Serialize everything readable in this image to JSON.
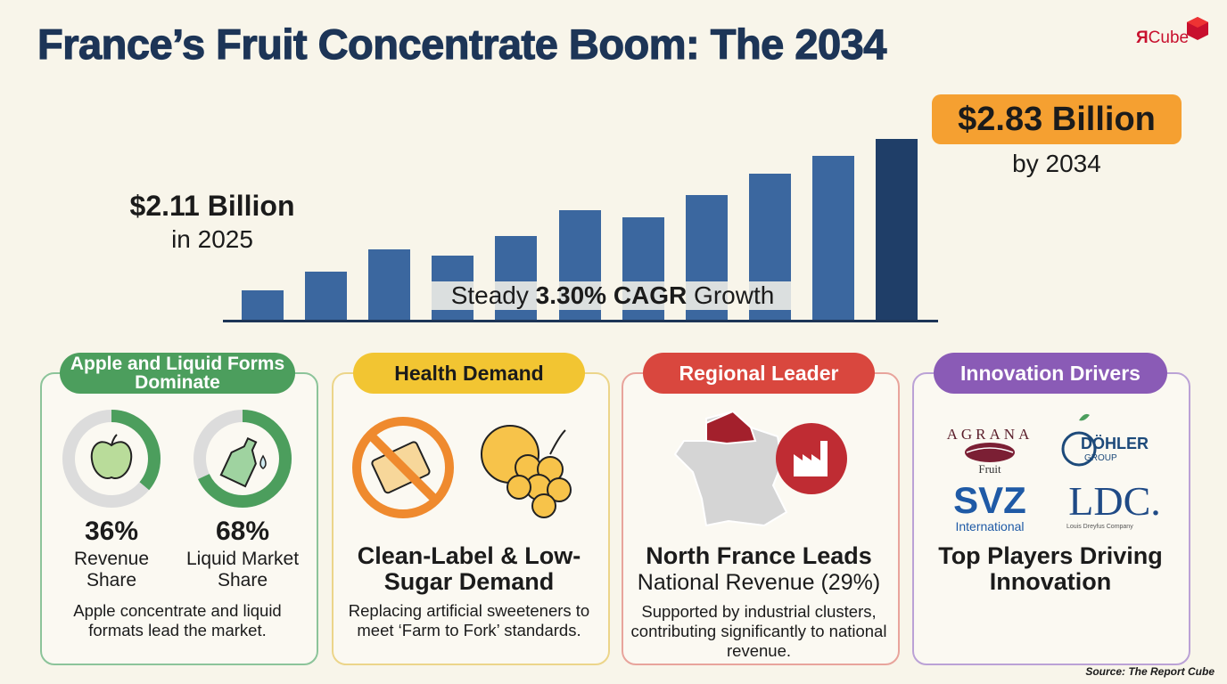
{
  "header": {
    "title": "France’s Fruit Concentrate Boom: The 2034",
    "logo": {
      "mark": "Я",
      "text": "Cube"
    }
  },
  "hero": {
    "start_value": "$2.11 Billion",
    "start_label": "in 2025",
    "end_value": "$2.83 Billion",
    "end_label": "by 2034",
    "cagr": {
      "prefix": "Steady",
      "highlight": "3.30% CAGR",
      "suffix": "Growth"
    }
  },
  "cards": [
    {
      "title": "Apple and Liquid Forms Dominate",
      "stats": [
        {
          "value": 36,
          "label": "36%",
          "caption": "Revenue Share"
        },
        {
          "value": 68,
          "label": "68%",
          "caption": "Liquid Market Share"
        }
      ],
      "description": "Apple concentrate and liquid formats lead the market."
    },
    {
      "title": "Health Demand",
      "headline": "Clean-Label & Low-Sugar Demand",
      "description": "Replacing artificial sweeteners to meet ‘Farm to Fork’ standards."
    },
    {
      "title": "Regional Leader",
      "headline": "North France Leads",
      "subheadline": "National Revenue (29%)",
      "description": "Supported by industrial clusters, contributing significantly to national revenue."
    },
    {
      "title": "Innovation Drivers",
      "logos": [
        "AGRANA",
        "Fruit",
        "DÖHLER",
        "GROUP",
        "SVZ",
        "International",
        "LDC.",
        "Louis Dreyfus Company"
      ],
      "headline": "Top Players Driving Innovation"
    }
  ],
  "source": "Source: The Report Cube"
}
